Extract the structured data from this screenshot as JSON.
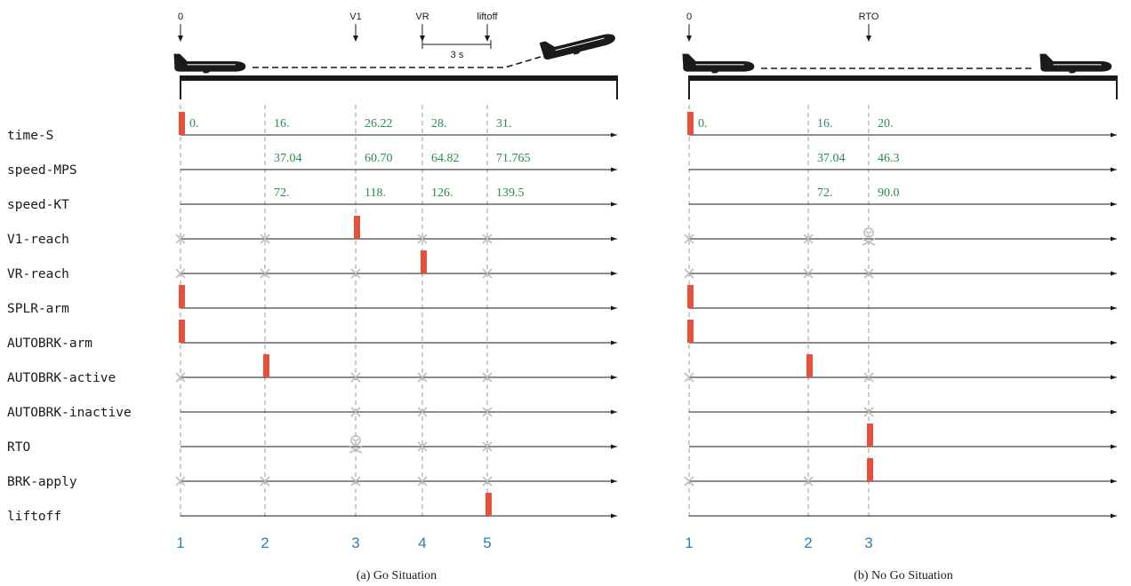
{
  "colors": {
    "value_text": "#2a8a4e",
    "event_bar": "#e8503a",
    "cross": "#bdbdbd",
    "event_number": "#2e7fb3",
    "axis": "#1a1a1a"
  },
  "row_labels": [
    "time-S",
    "speed-MPS",
    "speed-KT",
    "V1-reach",
    "VR-reach",
    "SPLR-arm",
    "AUTOBRK-arm",
    "AUTOBRK-active",
    "AUTOBRK-inactive",
    "RTO",
    "BRK-apply",
    "liftoff"
  ],
  "panels": [
    {
      "caption": "(a) Go Situation",
      "event_numbers": [
        "1",
        "2",
        "3",
        "4",
        "5"
      ],
      "top_markers": [
        {
          "label": "0",
          "col": 0
        },
        {
          "label": "V1",
          "col": 2
        },
        {
          "label": "VR",
          "col": 3
        },
        {
          "label": "liftoff",
          "col": 4
        }
      ],
      "interval_label": "3 s",
      "values": {
        "time-S": [
          "0.",
          "16.",
          "26.22",
          "28.",
          "31."
        ],
        "speed-MPS": [
          "",
          "37.04",
          "60.70",
          "64.82",
          "71.765"
        ],
        "speed-KT": [
          "",
          "72.",
          "118.",
          "126.",
          "139.5"
        ]
      },
      "bars": [
        {
          "row": "time-S",
          "col": 0
        },
        {
          "row": "V1-reach",
          "col": 2
        },
        {
          "row": "VR-reach",
          "col": 3
        },
        {
          "row": "SPLR-arm",
          "col": 0
        },
        {
          "row": "AUTOBRK-arm",
          "col": 0
        },
        {
          "row": "AUTOBRK-active",
          "col": 1
        },
        {
          "row": "liftoff",
          "col": 4
        }
      ],
      "crosses": [
        {
          "row": "V1-reach",
          "cols": [
            0,
            1,
            3,
            4
          ]
        },
        {
          "row": "VR-reach",
          "cols": [
            0,
            1,
            2,
            4
          ]
        },
        {
          "row": "AUTOBRK-active",
          "cols": [
            0,
            2,
            3,
            4
          ]
        },
        {
          "row": "AUTOBRK-inactive",
          "cols": [
            2,
            3,
            4
          ]
        },
        {
          "row": "RTO",
          "cols": [
            3,
            4
          ]
        },
        {
          "row": "BRK-apply",
          "cols": [
            0,
            1,
            2,
            3,
            4
          ]
        }
      ],
      "skulls": [
        {
          "row": "RTO",
          "col": 2
        }
      ]
    },
    {
      "caption": "(b) No Go Situation",
      "event_numbers": [
        "1",
        "2",
        "3"
      ],
      "top_markers": [
        {
          "label": "0",
          "col": 0
        },
        {
          "label": "RTO",
          "col": 2
        }
      ],
      "interval_label": "",
      "values": {
        "time-S": [
          "0.",
          "16.",
          "20."
        ],
        "speed-MPS": [
          "",
          "37.04",
          "46.3"
        ],
        "speed-KT": [
          "",
          "72.",
          "90.0"
        ]
      },
      "bars": [
        {
          "row": "time-S",
          "col": 0
        },
        {
          "row": "SPLR-arm",
          "col": 0
        },
        {
          "row": "AUTOBRK-arm",
          "col": 0
        },
        {
          "row": "AUTOBRK-active",
          "col": 1
        },
        {
          "row": "RTO",
          "col": 2
        },
        {
          "row": "BRK-apply",
          "col": 2
        }
      ],
      "crosses": [
        {
          "row": "V1-reach",
          "cols": [
            0,
            1
          ]
        },
        {
          "row": "VR-reach",
          "cols": [
            0,
            1,
            2
          ]
        },
        {
          "row": "AUTOBRK-active",
          "cols": [
            0,
            2
          ]
        },
        {
          "row": "AUTOBRK-inactive",
          "cols": [
            2
          ]
        },
        {
          "row": "BRK-apply",
          "cols": [
            0,
            1
          ]
        }
      ],
      "skulls": [
        {
          "row": "V1-reach",
          "col": 2
        }
      ]
    }
  ]
}
